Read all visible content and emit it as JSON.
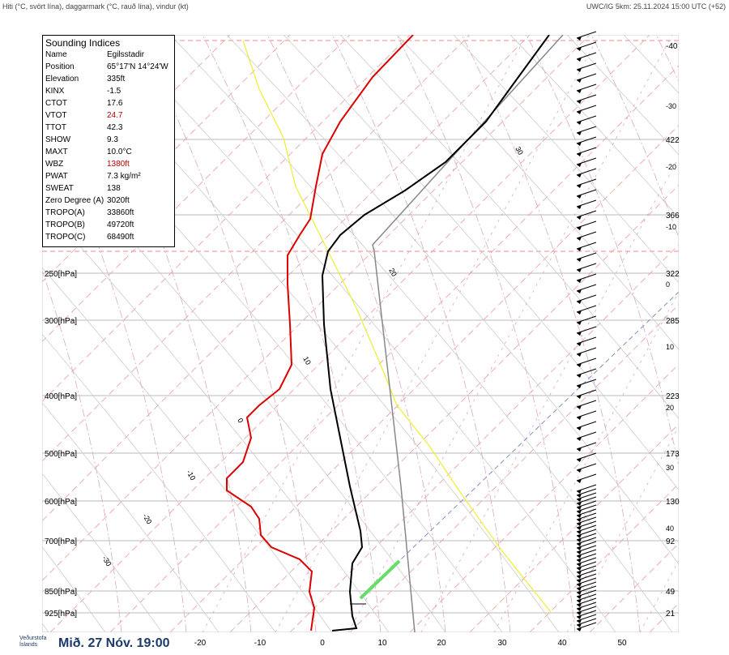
{
  "header": {
    "left": "Hiti (°C, svört lína), daggarmark (°C, rauð lína), vindur (kt)",
    "right": "UWC/IG 5km: 25.11.2024 15:00 UTC (+52)"
  },
  "indices": {
    "title": "Sounding Indices",
    "rows": [
      [
        "Name",
        "Egilsstadir"
      ],
      [
        "Position",
        "65°17'N 14°24'W"
      ],
      [
        "Elevation",
        "335ft"
      ],
      [
        "KINX",
        "-1.5"
      ],
      [
        "CTOT",
        "17.6"
      ],
      [
        "VTOT",
        "24.7"
      ],
      [
        "TTOT",
        "42.3"
      ],
      [
        "SHOW",
        "9.3"
      ],
      [
        "MAXT",
        "10.0°C"
      ],
      [
        "WBZ",
        "1380ft"
      ],
      [
        "PWAT",
        "7.3 kg/m²"
      ],
      [
        "SWEAT",
        "138"
      ],
      [
        "Zero Degree (A)",
        "3020ft"
      ],
      [
        "TROPO(A)",
        "33860ft"
      ],
      [
        "TROPO(B)",
        "49720ft"
      ],
      [
        "TROPO(C)",
        "68490ft"
      ]
    ]
  },
  "pressure_labels": [
    "250[hPa]",
    "300[hPa]",
    "400[hPa]",
    "500[hPa]",
    "600[hPa]",
    "700[hPa]",
    "850[hPa]",
    "925[hPa]"
  ],
  "right_labels": [
    "-40",
    "-30",
    "422",
    "-20",
    "366",
    "-10",
    "322",
    "0",
    "285",
    "10",
    "223",
    "20",
    "173",
    "30",
    "130",
    "40",
    "92",
    "49",
    "21"
  ],
  "bottom_labels": [
    "-20",
    "-10",
    "0",
    "10",
    "20",
    "30",
    "40",
    "50"
  ],
  "curve_labels": [
    "30",
    "20",
    "10",
    "0",
    "-10",
    "-20",
    "-30"
  ],
  "footer": {
    "logo": "Veðurstofa Íslands",
    "date": "Mið. 27 Nóv. 19:00"
  }
}
